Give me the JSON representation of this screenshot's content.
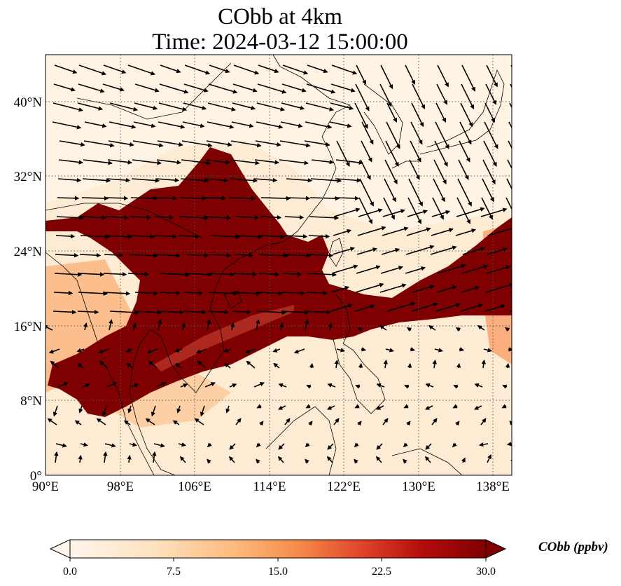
{
  "title": {
    "line1": "CObb at 4km",
    "line2": "Time: 2024-03-12 15:00:00"
  },
  "axes": {
    "lon_ticks": [
      "90°E",
      "98°E",
      "106°E",
      "114°E",
      "122°E",
      "130°E",
      "138°E"
    ],
    "lat_ticks": [
      "0°",
      "8°N",
      "16°N",
      "24°N",
      "32°N",
      "40°N"
    ],
    "lon_range": [
      90,
      140
    ],
    "lat_range": [
      0,
      45
    ],
    "grid": "dotted"
  },
  "colorbar": {
    "label": "CObb (ppbv)",
    "ticks": [
      "0.0",
      "7.5",
      "15.0",
      "22.5",
      "30.0"
    ],
    "range": [
      0,
      30
    ],
    "extend": "both",
    "colors": [
      "#fff5eb",
      "#fdd9b0",
      "#fdae6b",
      "#f16913",
      "#d94801",
      "#a50f15",
      "#7f0000"
    ]
  },
  "plume_color": "#7f0000",
  "background_color": "#fdebd3"
}
